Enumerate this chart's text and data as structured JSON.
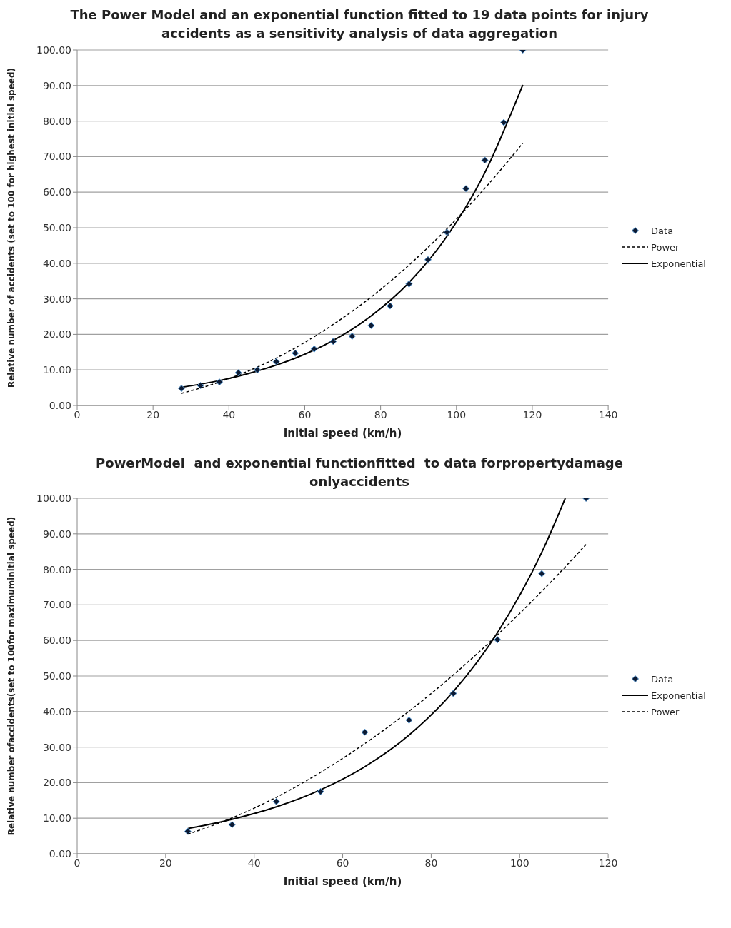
{
  "chart_data": [
    {
      "type": "scatter",
      "title": "The Power Model and an exponential function fitted to 19 data points for injury accidents as a sensitivity analysis of data aggregation",
      "xlabel": "Initial speed (km/h)",
      "ylabel": "Relative number of accidents (set to 100 for highest initial speed)",
      "xlim": [
        0,
        140
      ],
      "xticks": [
        0,
        20,
        40,
        60,
        80,
        100,
        120,
        140
      ],
      "ylim": [
        0,
        100
      ],
      "yticks": [
        {
          "value": 0,
          "label": "0.00"
        },
        {
          "value": 10,
          "label": "10.00"
        },
        {
          "value": 20,
          "label": "20.00"
        },
        {
          "value": 30,
          "label": "30.00"
        },
        {
          "value": 40,
          "label": "40.00"
        },
        {
          "value": 50,
          "label": "50.00"
        },
        {
          "value": 60,
          "label": "60.00"
        },
        {
          "value": 70,
          "label": "70.00"
        },
        {
          "value": 80,
          "label": "80.00"
        },
        {
          "value": 90,
          "label": "90.00"
        },
        {
          "value": 100,
          "label": "100.00"
        }
      ],
      "grid": "y",
      "legend": "right",
      "series": [
        {
          "name": "Data",
          "marker": "diamond",
          "color": "#0b1a33",
          "x": [
            27.5,
            32.5,
            37.5,
            42.5,
            47.5,
            52.5,
            57.5,
            62.5,
            67.5,
            72.5,
            77.5,
            82.5,
            87.5,
            92.5,
            97.5,
            102.5,
            107.5,
            112.5,
            117.5
          ],
          "values": [
            4.8,
            5.6,
            6.6,
            9.2,
            10.0,
            12.3,
            14.7,
            15.9,
            18.0,
            19.5,
            22.5,
            28.0,
            34.2,
            41.0,
            48.7,
            61.0,
            69.0,
            79.6,
            100
          ]
        },
        {
          "name": "Power",
          "type": "line",
          "marker": "none",
          "line_style": "dashed",
          "color": "#000000",
          "x": [
            27.5,
            37.5,
            47.5,
            57.5,
            67.5,
            77.5,
            87.5,
            97.5,
            107.5,
            117.5
          ],
          "values": [
            3.4,
            6.6,
            10.8,
            16.2,
            22.8,
            30.5,
            39.5,
            49.7,
            61.1,
            73.8
          ]
        },
        {
          "name": "Exponential",
          "type": "line",
          "marker": "none",
          "line_style": "solid",
          "color": "#000000",
          "x": [
            27.5,
            37.5,
            47.5,
            57.5,
            67.5,
            77.5,
            87.5,
            97.5,
            107.5,
            117.5
          ],
          "values": [
            5.1,
            7.0,
            9.7,
            13.3,
            18.3,
            25.2,
            34.6,
            47.6,
            65.5,
            90.2
          ]
        }
      ]
    },
    {
      "type": "scatter",
      "title": "PowerModel  and exponential functionfitted  to data forpropertydamage onlyaccidents",
      "xlabel": "Initial speed (km/h)",
      "ylabel": "Relative number ofaccidents(set   to 100for  maximuminitial  speed)",
      "xlim": [
        0,
        120
      ],
      "xticks": [
        0,
        20,
        40,
        60,
        80,
        100,
        120
      ],
      "ylim": [
        0,
        100
      ],
      "yticks": [
        {
          "value": 0,
          "label": "0.00"
        },
        {
          "value": 10,
          "label": "10.00"
        },
        {
          "value": 20,
          "label": "20.00"
        },
        {
          "value": 30,
          "label": "30.00"
        },
        {
          "value": 40,
          "label": "40.00"
        },
        {
          "value": 50,
          "label": "50.00"
        },
        {
          "value": 60,
          "label": "60.00"
        },
        {
          "value": 70,
          "label": "70.00"
        },
        {
          "value": 80,
          "label": "80.00"
        },
        {
          "value": 90,
          "label": "90.00"
        },
        {
          "value": 100,
          "label": "100.00"
        }
      ],
      "grid": "y",
      "legend": "right",
      "series": [
        {
          "name": "Data",
          "marker": "diamond",
          "color": "#0b1a33",
          "x": [
            25,
            35,
            45,
            55,
            65,
            75,
            85,
            95,
            105,
            115
          ],
          "values": [
            6.3,
            8.2,
            14.7,
            17.5,
            34.2,
            37.6,
            45.1,
            60.2,
            78.8,
            100
          ]
        },
        {
          "name": "Exponential",
          "type": "line",
          "marker": "none",
          "line_style": "solid",
          "color": "#000000",
          "x": [
            25,
            35,
            45,
            55,
            65,
            75,
            85,
            95,
            105,
            110.3
          ],
          "values": [
            7.1,
            9.7,
            13.2,
            18.0,
            24.5,
            33.4,
            45.6,
            62.2,
            84.8,
            100
          ]
        },
        {
          "name": "Power",
          "type": "line",
          "marker": "none",
          "line_style": "dashed",
          "color": "#000000",
          "x": [
            25,
            35,
            45,
            55,
            65,
            75,
            85,
            95,
            105,
            115
          ],
          "values": [
            5.5,
            10.1,
            15.9,
            22.9,
            31.0,
            40.1,
            50.3,
            61.6,
            73.8,
            87.0
          ]
        }
      ]
    }
  ]
}
